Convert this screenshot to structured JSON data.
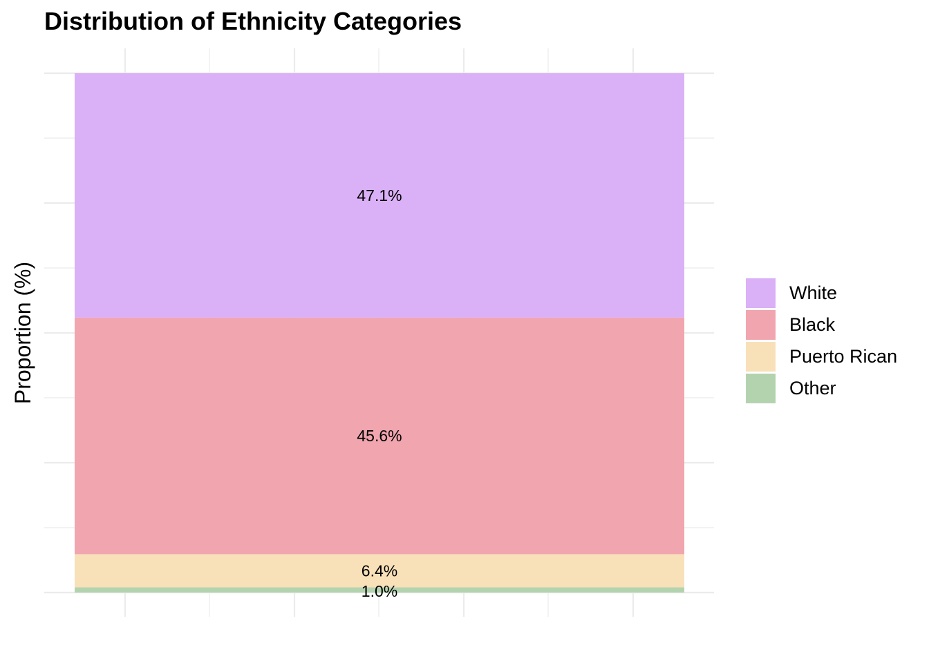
{
  "chart_data": {
    "type": "bar",
    "stacked": true,
    "title": "Distribution of Ethnicity Categories",
    "xlabel": "",
    "ylabel": "Proportion (%)",
    "ylim": [
      0,
      100
    ],
    "grid": true,
    "legend_position": "right",
    "series": [
      {
        "name": "White",
        "value": 47.1,
        "label": "47.1%",
        "color": "#DAB0F7"
      },
      {
        "name": "Black",
        "value": 45.6,
        "label": "45.6%",
        "color": "#F0A5AF"
      },
      {
        "name": "Puerto Rican",
        "value": 6.4,
        "label": "6.4%",
        "color": "#F8E0B9"
      },
      {
        "name": "Other",
        "value": 1.0,
        "label": "1.0%",
        "color": "#B3D3AF"
      }
    ]
  }
}
